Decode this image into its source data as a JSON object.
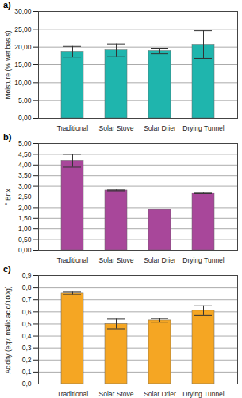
{
  "chart_data": [
    {
      "type": "bar",
      "title": "a)",
      "ylabel": "Moisture (% wet basis)",
      "categories": [
        "Traditional",
        "Solar Stove",
        "Solar Drier",
        "Drying Tunnel"
      ],
      "values": [
        18.7,
        19.1,
        18.9,
        20.7
      ],
      "errors": [
        1.5,
        1.8,
        0.8,
        3.9
      ],
      "color": "#1fb5ad",
      "ylim": [
        0,
        30
      ],
      "yticks": [
        {
          "value": 0,
          "label": "0,00"
        },
        {
          "value": 5,
          "label": "5,00"
        },
        {
          "value": 10,
          "label": "10,00"
        },
        {
          "value": 15,
          "label": "15,00"
        },
        {
          "value": 20,
          "label": "20,00"
        },
        {
          "value": 25,
          "label": "25,00"
        },
        {
          "value": 30,
          "label": "30,00"
        }
      ],
      "grid": true
    },
    {
      "type": "bar",
      "title": "b)",
      "ylabel": "° Brix",
      "categories": [
        "Traditional",
        "Solar Stove",
        "Solar Drier",
        "Drying Tunnel"
      ],
      "values": [
        4.2,
        2.8,
        1.9,
        2.68
      ],
      "errors": [
        0.3,
        0.02,
        0,
        0.03
      ],
      "color": "#a8479a",
      "ylim": [
        0,
        5
      ],
      "yticks": [
        {
          "value": 0,
          "label": "0,00"
        },
        {
          "value": 0.5,
          "label": "0,50"
        },
        {
          "value": 1,
          "label": "1,00"
        },
        {
          "value": 1.5,
          "label": "1,50"
        },
        {
          "value": 2,
          "label": "2,00"
        },
        {
          "value": 2.5,
          "label": "2,50"
        },
        {
          "value": 3,
          "label": "3,00"
        },
        {
          "value": 3.5,
          "label": "3,50"
        },
        {
          "value": 4,
          "label": "4,00"
        },
        {
          "value": 4.5,
          "label": "4,50"
        },
        {
          "value": 5,
          "label": "5,00"
        }
      ],
      "grid": true
    },
    {
      "type": "bar",
      "title": "c)",
      "ylabel": "Acidity (eqv. malic acid/100g)",
      "categories": [
        "Traditional",
        "Solar Stove",
        "Solar Drier",
        "Drying Tunnel"
      ],
      "values": [
        0.755,
        0.5,
        0.53,
        0.61
      ],
      "errors": [
        0.01,
        0.04,
        0.015,
        0.04
      ],
      "color": "#f5a623",
      "ylim": [
        0,
        0.9
      ],
      "yticks": [
        {
          "value": 0,
          "label": "0,0"
        },
        {
          "value": 0.1,
          "label": "0,1"
        },
        {
          "value": 0.2,
          "label": "0,2"
        },
        {
          "value": 0.3,
          "label": "0,3"
        },
        {
          "value": 0.4,
          "label": "0,4"
        },
        {
          "value": 0.5,
          "label": "0,5"
        },
        {
          "value": 0.6,
          "label": "0,6"
        },
        {
          "value": 0.7,
          "label": "0,7"
        },
        {
          "value": 0.8,
          "label": "0,8"
        },
        {
          "value": 0.9,
          "label": "0,9"
        }
      ],
      "grid": true
    }
  ]
}
